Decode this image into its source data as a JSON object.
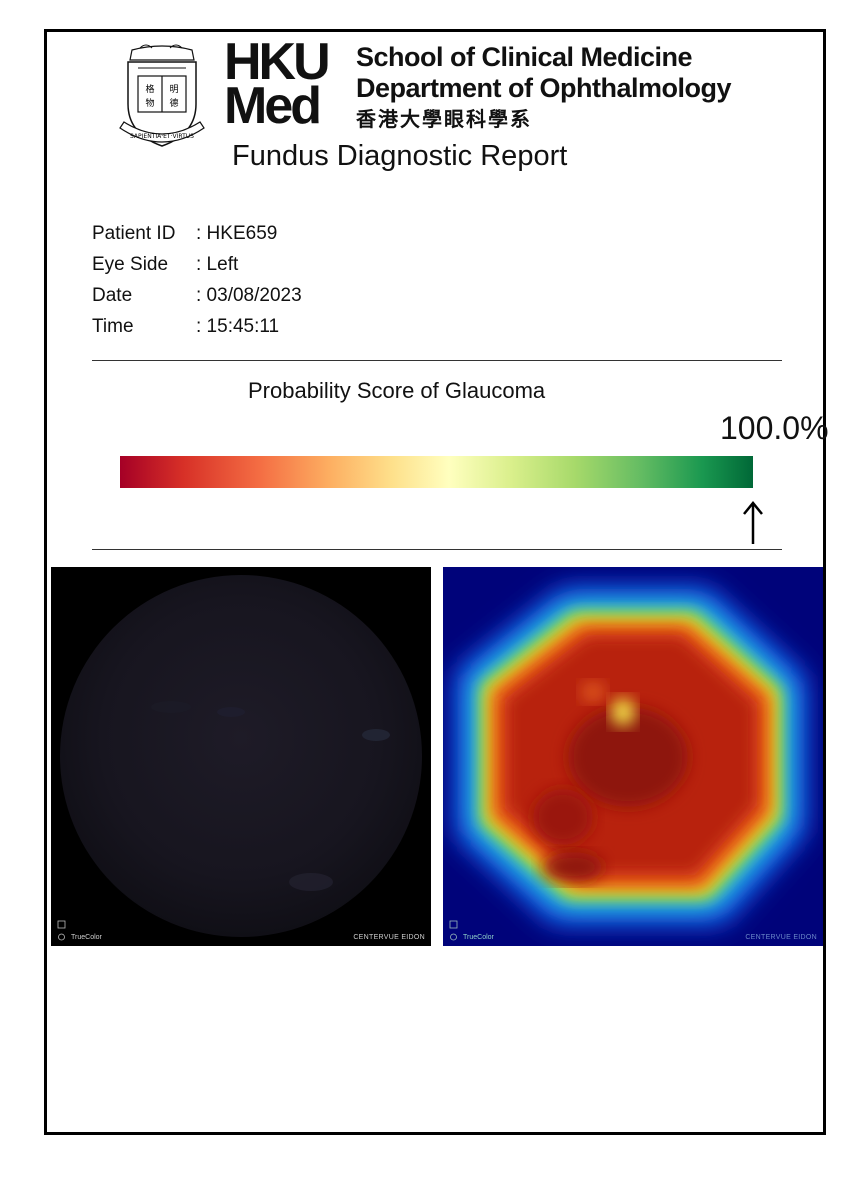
{
  "header": {
    "logo_line1": "HKU",
    "logo_line2": "Med",
    "school": "School of Clinical Medicine",
    "department": "Department of Ophthalmology",
    "department_chinese": "香港大學眼科學系",
    "crest_motto": "SAPIENTIA ET VIRTUS"
  },
  "report_title": "Fundus Diagnostic Report",
  "patient": [
    {
      "label": "Patient ID",
      "value": ": HKE659"
    },
    {
      "label": "Eye Side",
      "value": ": Left"
    },
    {
      "label": "Date",
      "value": ": 03/08/2023"
    },
    {
      "label": "Time",
      "value": ": 15:45:11"
    }
  ],
  "score": {
    "title": "Probability Score of Glaucoma",
    "value_text": "100.0%",
    "value": 1.0,
    "colors": [
      "#a50026",
      "#fee08b",
      "#ffffbf",
      "#006837"
    ]
  },
  "images": {
    "left": {
      "brand_left": "TrueColor",
      "brand_right": "CENTERVUE EIDON"
    },
    "right": {
      "brand_left": "TrueColor",
      "brand_right": "CENTERVUE EIDON"
    }
  }
}
